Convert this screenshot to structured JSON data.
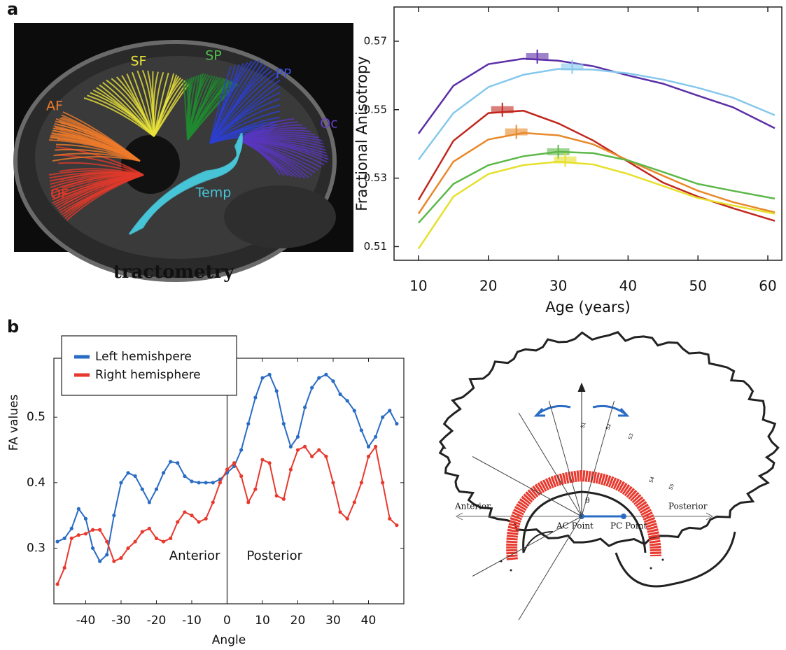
{
  "panels": {
    "a": "a",
    "b": "b"
  },
  "tract_image": {
    "caption": "tractometry",
    "labels": [
      {
        "text": "SF",
        "color": "#e8e23a"
      },
      {
        "text": "SP",
        "color": "#4fbf4a"
      },
      {
        "text": "PP",
        "color": "#3d4fd6"
      },
      {
        "text": "Oc",
        "color": "#6a3fc8"
      },
      {
        "text": "AF",
        "color": "#ee7a2a"
      },
      {
        "text": "OF",
        "color": "#e23a2a"
      },
      {
        "text": "Temp",
        "color": "#48c6d8"
      }
    ]
  },
  "chart_data": [
    {
      "type": "line",
      "ylabel": "Fractional Anisotropy",
      "xlabel": "Age (years)",
      "x": [
        10,
        15,
        20,
        25,
        30,
        35,
        40,
        45,
        50,
        55,
        61
      ],
      "xlim": [
        6.5,
        62
      ],
      "xticks": [
        10,
        20,
        30,
        40,
        50,
        60
      ],
      "ylim": [
        0.506,
        0.58
      ],
      "yticks": [
        0.51,
        0.53,
        0.55,
        0.57
      ],
      "grid": false,
      "series": [
        {
          "color": "#5b2fa6",
          "values": [
            0.543,
            0.557,
            0.5633,
            0.5649,
            0.5643,
            0.5627,
            0.56,
            0.5576,
            0.5541,
            0.5507,
            0.5446
          ],
          "peak": {
            "x": 27,
            "y": 0.5655
          }
        },
        {
          "color": "#86c8ec",
          "values": [
            0.5354,
            0.549,
            0.5566,
            0.5602,
            0.5619,
            0.5617,
            0.5606,
            0.5588,
            0.5564,
            0.5535,
            0.5484
          ],
          "peak": {
            "x": 32,
            "y": 0.5625
          }
        },
        {
          "color": "#c0281e",
          "values": [
            0.5236,
            0.5409,
            0.549,
            0.5497,
            0.546,
            0.541,
            0.5348,
            0.5287,
            0.5246,
            0.5212,
            0.5175
          ],
          "peak": {
            "x": 22,
            "y": 0.55
          }
        },
        {
          "color": "#e8892a",
          "values": [
            0.5196,
            0.5348,
            0.5413,
            0.5432,
            0.5425,
            0.5399,
            0.5352,
            0.5307,
            0.5263,
            0.523,
            0.52
          ],
          "peak": {
            "x": 24,
            "y": 0.5435
          }
        },
        {
          "color": "#5cb848",
          "values": [
            0.5169,
            0.5283,
            0.5338,
            0.5364,
            0.5377,
            0.5373,
            0.5352,
            0.5318,
            0.5283,
            0.5263,
            0.524
          ],
          "peak": {
            "x": 30,
            "y": 0.5377
          }
        },
        {
          "color": "#e6e02c",
          "values": [
            0.5094,
            0.5246,
            0.5312,
            0.5338,
            0.5348,
            0.534,
            0.5312,
            0.5277,
            0.5242,
            0.522,
            0.5196
          ],
          "peak": {
            "x": 31,
            "y": 0.5353
          }
        }
      ]
    },
    {
      "type": "line-dots",
      "ylabel": "FA values",
      "xlabel": "Angle",
      "x": [
        -48,
        -46,
        -44,
        -42,
        -40,
        -38,
        -36,
        -34,
        -32,
        -30,
        -28,
        -26,
        -24,
        -22,
        -20,
        -18,
        -16,
        -14,
        -12,
        -10,
        -8,
        -6,
        -4,
        -2,
        0,
        2,
        4,
        6,
        8,
        10,
        12,
        14,
        16,
        18,
        20,
        22,
        24,
        26,
        28,
        30,
        32,
        34,
        36,
        38,
        40,
        42,
        44,
        46,
        48
      ],
      "xlim": [
        -49,
        50
      ],
      "xticks": [
        -40,
        -30,
        -20,
        -10,
        0,
        10,
        20,
        30,
        40
      ],
      "ylim": [
        0.215,
        0.59
      ],
      "yticks": [
        0.3,
        0.4,
        0.5
      ],
      "divider_x": 0,
      "legend": "upper left",
      "annotations": [
        "Anterior",
        "Posterior"
      ],
      "series": [
        {
          "name": "Left hemishpere",
          "color": "#2a6cc4",
          "values": [
            0.31,
            0.315,
            0.33,
            0.36,
            0.345,
            0.3,
            0.28,
            0.29,
            0.35,
            0.4,
            0.415,
            0.41,
            0.39,
            0.37,
            0.39,
            0.415,
            0.432,
            0.43,
            0.41,
            0.402,
            0.4,
            0.4,
            0.4,
            0.405,
            0.415,
            0.425,
            0.45,
            0.49,
            0.53,
            0.56,
            0.565,
            0.54,
            0.49,
            0.455,
            0.47,
            0.515,
            0.545,
            0.56,
            0.565,
            0.555,
            0.535,
            0.525,
            0.51,
            0.48,
            0.455,
            0.47,
            0.5,
            0.51,
            0.49
          ]
        },
        {
          "name": "Right hemisphere",
          "color": "#e8392e",
          "values": [
            0.245,
            0.27,
            0.315,
            0.32,
            0.322,
            0.328,
            0.328,
            0.31,
            0.28,
            0.285,
            0.3,
            0.31,
            0.325,
            0.33,
            0.315,
            0.31,
            0.315,
            0.34,
            0.355,
            0.35,
            0.34,
            0.345,
            0.37,
            0.4,
            0.42,
            0.43,
            0.41,
            0.37,
            0.39,
            0.435,
            0.43,
            0.38,
            0.375,
            0.42,
            0.45,
            0.455,
            0.44,
            0.45,
            0.44,
            0.4,
            0.355,
            0.345,
            0.37,
            0.4,
            0.44,
            0.455,
            0.4,
            0.345,
            0.335
          ]
        }
      ]
    }
  ],
  "diagram": {
    "anterior": "Anterior",
    "posterior": "Posterior",
    "ac_point": "AC Point",
    "pc_point": "PC Point",
    "theta": "θ",
    "spokes": [
      "S1",
      "S2",
      "S3",
      "S4",
      "S5"
    ]
  }
}
